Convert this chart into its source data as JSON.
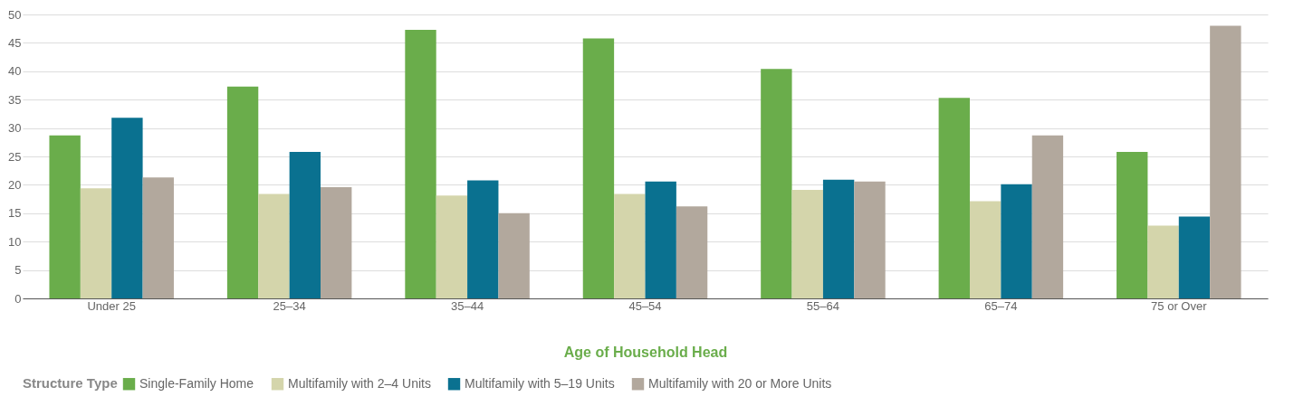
{
  "chart_data": {
    "type": "bar",
    "xlabel": "Age of Household Head",
    "legend_title": "Structure Type",
    "categories": [
      "Under 25",
      "25–34",
      "35–44",
      "45–54",
      "55–64",
      "65–74",
      "75 or Over"
    ],
    "series": [
      {
        "name": "Single-Family Home",
        "color": "#6aad4b",
        "values": [
          28.7,
          37.3,
          47.3,
          45.8,
          40.4,
          35.3,
          25.8
        ]
      },
      {
        "name": "Multifamily with 2–4 Units",
        "color": "#d4d5ab",
        "values": [
          19.4,
          18.4,
          18.1,
          18.4,
          19.1,
          17.1,
          12.8
        ]
      },
      {
        "name": "Multifamily with 5–19 Units",
        "color": "#0a7190",
        "values": [
          31.8,
          25.8,
          20.8,
          20.6,
          20.9,
          20.1,
          14.4
        ]
      },
      {
        "name": "Multifamily with 20 or More Units",
        "color": "#b2a89d",
        "values": [
          21.3,
          19.6,
          15.0,
          16.2,
          20.6,
          28.7,
          48.0
        ]
      }
    ],
    "ylim": [
      0,
      50
    ],
    "yticks": [
      0,
      5,
      10,
      15,
      20,
      25,
      30,
      35,
      40,
      45,
      50
    ],
    "grid": "y",
    "legend": "bottom"
  }
}
